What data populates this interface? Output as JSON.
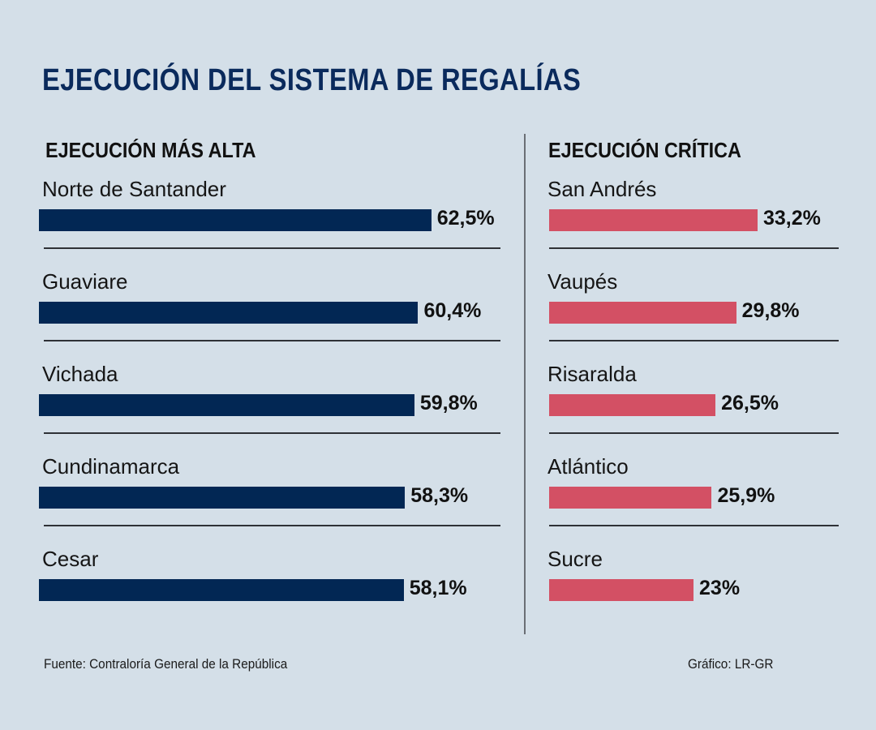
{
  "chart_data": {
    "type": "bar",
    "orientation": "horizontal",
    "title": "EJECUCIÓN DEL SISTEMA DE REGALÍAS",
    "unit": "%",
    "panels": [
      {
        "title": "EJECUCIÓN MÁS ALTA",
        "color": "#022754",
        "categories": [
          "Norte de Santander",
          "Guaviare",
          "Vichada",
          "Cundinamarca",
          "Cesar"
        ],
        "values": [
          62.5,
          60.4,
          59.8,
          58.3,
          58.1
        ],
        "labels": [
          "62,5%",
          "60,4%",
          "59,8%",
          "58,3%",
          "58,1%"
        ]
      },
      {
        "title": "EJECUCIÓN CRÍTICA",
        "color": "#d35064",
        "categories": [
          "San Andrés",
          "Vaupés",
          "Risaralda",
          "Atlántico",
          "Sucre"
        ],
        "values": [
          33.2,
          29.8,
          26.5,
          25.9,
          23
        ],
        "labels": [
          "33,2%",
          "29,8%",
          "26,5%",
          "25,9%",
          "23%"
        ]
      }
    ],
    "xlim": [
      0,
      62.5
    ],
    "grid": false,
    "legend": "none"
  },
  "footer": {
    "source": "Fuente: Contraloría General de la República",
    "credit": "Gráfico: LR-GR"
  },
  "colors": {
    "background": "#d4dfe8",
    "title": "#0a2a5c"
  }
}
